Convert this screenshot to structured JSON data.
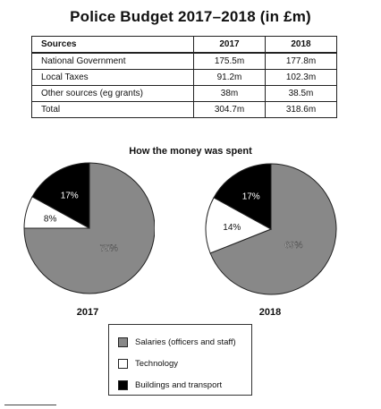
{
  "title": "Police Budget 2017–2018 (in £m)",
  "table": {
    "headers": [
      "Sources",
      "2017",
      "2018"
    ],
    "rows": [
      [
        "National Government",
        "175.5m",
        "177.8m"
      ],
      [
        "Local Taxes",
        "91.2m",
        "102.3m"
      ],
      [
        "Other sources (eg grants)",
        "38m",
        "38.5m"
      ],
      [
        "Total",
        "304.7m",
        "318.6m"
      ]
    ]
  },
  "chart_data": [
    {
      "type": "table",
      "title": "Police Budget 2017–2018 (in £m)",
      "columns": [
        "Sources",
        "2017",
        "2018"
      ],
      "rows": [
        [
          "National Government",
          175.5,
          177.8
        ],
        [
          "Local Taxes",
          91.2,
          102.3
        ],
        [
          "Other sources (eg grants)",
          38,
          38.5
        ],
        [
          "Total",
          304.7,
          318.6
        ]
      ]
    },
    {
      "type": "pie",
      "title": "How the money was spent",
      "label": "2017",
      "slices": [
        {
          "name": "Salaries (officers and staff)",
          "value": 75,
          "label": "75%",
          "color": "#888888"
        },
        {
          "name": "Technology",
          "value": 8,
          "label": "8%",
          "color": "#ffffff"
        },
        {
          "name": "Buildings and transport",
          "value": 17,
          "label": "17%",
          "color": "#000000"
        }
      ]
    },
    {
      "type": "pie",
      "title": "How the money was spent",
      "label": "2018",
      "slices": [
        {
          "name": "Salaries (officers and staff)",
          "value": 69,
          "label": "69%",
          "color": "#888888"
        },
        {
          "name": "Technology",
          "value": 14,
          "label": "14%",
          "color": "#ffffff"
        },
        {
          "name": "Buildings and transport",
          "value": 17,
          "label": "17%",
          "color": "#000000"
        }
      ]
    }
  ],
  "subtitle": "How the money was spent",
  "legend": [
    {
      "label": "Salaries (officers and staff)",
      "color": "#888888"
    },
    {
      "label": "Technology",
      "color": "#ffffff"
    },
    {
      "label": "Buildings and transport",
      "color": "#000000"
    }
  ]
}
